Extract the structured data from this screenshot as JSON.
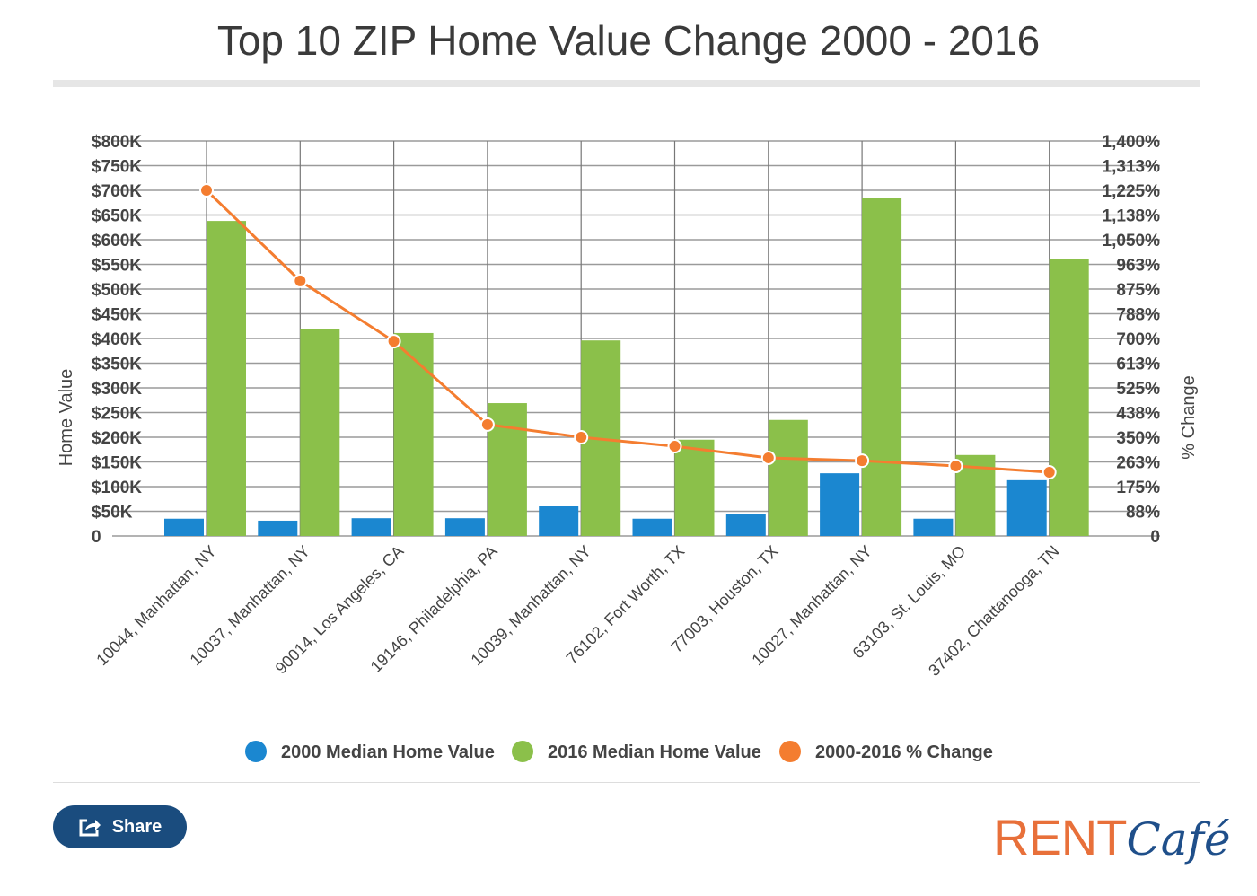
{
  "chart_data": {
    "type": "bar",
    "title": "Top 10 ZIP Home Value Change 2000 - 2016",
    "ylabel": "Home Value",
    "y2label": "% Change",
    "ylim": [
      0,
      800
    ],
    "y2lim": [
      0,
      1400
    ],
    "yticks": [
      "0",
      "$50K",
      "$100K",
      "$150K",
      "$200K",
      "$250K",
      "$300K",
      "$350K",
      "$400K",
      "$450K",
      "$500K",
      "$550K",
      "$600K",
      "$650K",
      "$700K",
      "$750K",
      "$800K"
    ],
    "y2ticks": [
      "0",
      "88%",
      "175%",
      "263%",
      "350%",
      "438%",
      "525%",
      "613%",
      "700%",
      "788%",
      "875%",
      "963%",
      "1,050%",
      "1,138%",
      "1,225%",
      "1,313%",
      "1,400%"
    ],
    "categories": [
      "10044, Manhattan, NY",
      "10037, Manhattan, NY",
      "90014, Los Angeles, CA",
      "19146, Philadelphia, PA",
      "10039, Manhattan, NY",
      "76102, Fort Worth, TX",
      "77003, Houston, TX",
      "10027, Manhattan, NY",
      "63103, St. Louis, MO",
      "37402, Chattanooga, TN"
    ],
    "series": [
      {
        "name": "2000 Median Home Value",
        "type": "bar",
        "axis": "left",
        "unit": "$K",
        "color": "#1b87d0",
        "values": [
          35,
          31,
          36,
          36,
          60,
          35,
          44,
          127,
          35,
          113
        ]
      },
      {
        "name": "2016 Median Home Value",
        "type": "bar",
        "axis": "left",
        "unit": "$K",
        "color": "#8bc04a",
        "values": [
          638,
          420,
          411,
          269,
          396,
          195,
          235,
          685,
          164,
          560
        ]
      },
      {
        "name": "2000-2016 % Change",
        "type": "line",
        "axis": "right",
        "unit": "%",
        "color": "#f47d30",
        "values": [
          1225,
          904,
          690,
          395,
          350,
          318,
          277,
          267,
          248,
          226
        ]
      }
    ],
    "legend": "bottom",
    "grid": true
  },
  "share_label": "Share",
  "logo": {
    "part1": "RENT",
    "part2": "Café"
  }
}
